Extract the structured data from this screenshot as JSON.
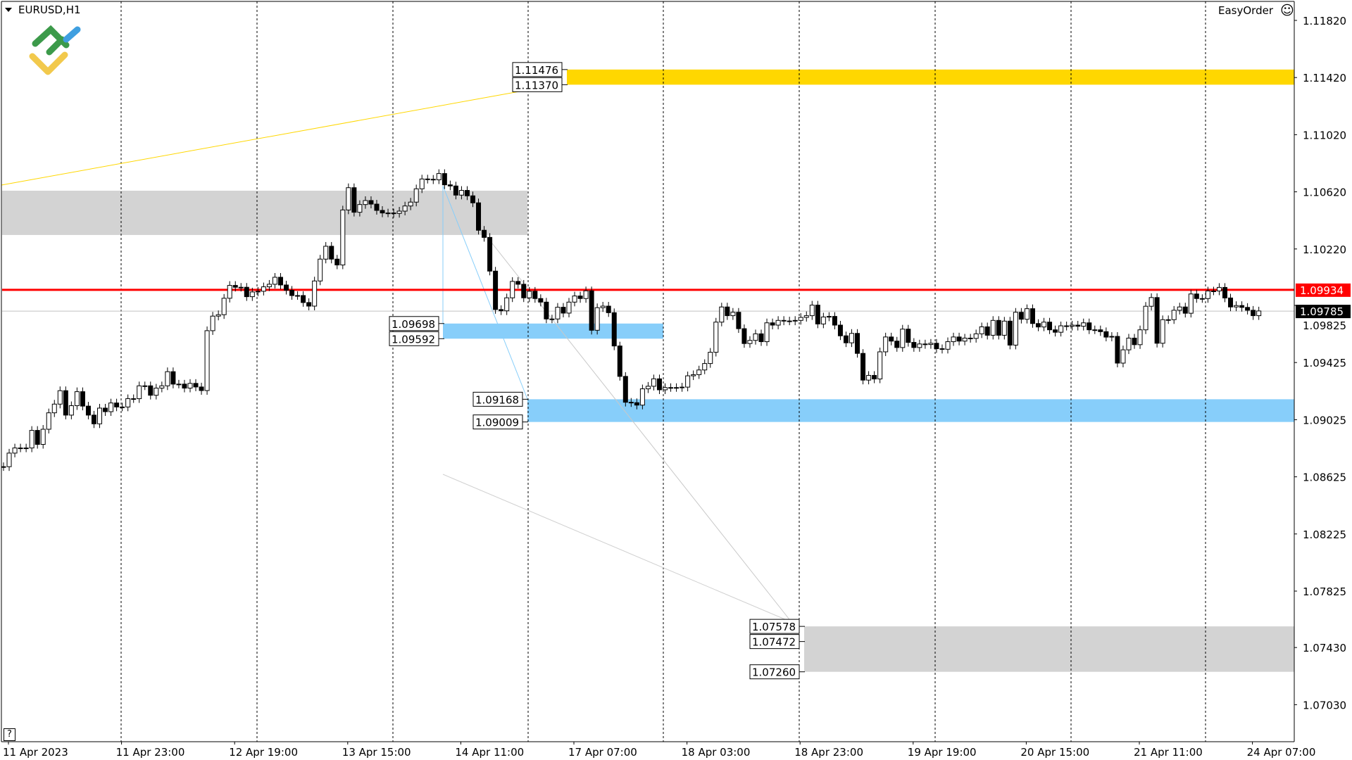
{
  "window": {
    "symbol_title": "EURUSD,H1",
    "plugin_label": "EasyOrder",
    "plugin_icon": "smiley-icon",
    "help_label": "?"
  },
  "colors": {
    "red_line": "#ff0000",
    "yellow_zone": "#ffd700",
    "blue_zone": "#87cefa",
    "gray_zone": "#d3d3d3",
    "bull": "#ffffff",
    "bear": "#000000",
    "current_price_label": "#000000"
  },
  "chart_data": {
    "type": "candlestick",
    "symbol": "EURUSD",
    "timeframe": "H1",
    "ylim": [
      1.069,
      1.1196
    ],
    "y_ticks": [
      "1.11820",
      "1.11420",
      "1.11020",
      "1.10620",
      "1.10220",
      "1.09825",
      "1.09425",
      "1.09025",
      "1.08625",
      "1.08225",
      "1.07825",
      "1.07430",
      "1.07030"
    ],
    "x_ticks": [
      "11 Apr 2023",
      "11 Apr 23:00",
      "12 Apr 19:00",
      "13 Apr 15:00",
      "14 Apr 11:00",
      "17 Apr 07:00",
      "18 Apr 03:00",
      "18 Apr 23:00",
      "19 Apr 19:00",
      "20 Apr 15:00",
      "21 Apr 11:00",
      "24 Apr 07:00"
    ],
    "grid": "vertical day separators (dashed)",
    "closes": [
      1.08696,
      1.08791,
      1.08827,
      1.08827,
      1.08827,
      1.0895,
      1.08852,
      1.08958,
      1.09073,
      1.09134,
      1.09228,
      1.09057,
      1.09123,
      1.09221,
      1.0912,
      1.09057,
      1.08996,
      1.09106,
      1.09081,
      1.09142,
      1.09114,
      1.09114,
      1.09172,
      1.09172,
      1.09262,
      1.09262,
      1.09196,
      1.09246,
      1.09262,
      1.09361,
      1.09274,
      1.09274,
      1.09246,
      1.09279,
      1.09254,
      1.09229,
      1.09648,
      1.0975,
      1.0976,
      1.09875,
      1.09965,
      1.09952,
      1.09952,
      1.09886,
      1.09919,
      1.09924,
      1.09955,
      1.09973,
      1.10022,
      1.09968,
      1.09931,
      1.09894,
      1.09894,
      1.09845,
      1.0982,
      1.09996,
      1.10149,
      1.10239,
      1.10149,
      1.10108,
      1.10493,
      1.10649,
      1.10477,
      1.10531,
      1.10559,
      1.10534,
      1.1049,
      1.10472,
      1.10472,
      1.10469,
      1.10485,
      1.10521,
      1.10548,
      1.10641,
      1.1071,
      1.10708,
      1.10704,
      1.10748,
      1.10669,
      1.10661,
      1.10597,
      1.1063,
      1.10592,
      1.10543,
      1.10351,
      1.10301,
      1.10065,
      1.09796,
      1.09787,
      1.09878,
      1.09993,
      1.09973,
      1.09878,
      1.09924,
      1.09873,
      1.09848,
      1.0973,
      1.0973,
      1.09812,
      1.09771,
      1.09848,
      1.09891,
      1.09873,
      1.09927,
      1.09651,
      1.09809,
      1.0982,
      1.09774,
      1.09541,
      1.09328,
      1.09147,
      1.09144,
      1.09127,
      1.09241,
      1.09259,
      1.09311,
      1.09234,
      1.0925,
      1.0925,
      1.0925,
      1.09253,
      1.09332,
      1.0934,
      1.09373,
      1.09418,
      1.09497,
      1.09708,
      1.09814,
      1.09753,
      1.09777,
      1.09662,
      1.09558,
      1.0958,
      1.09626,
      1.09571,
      1.09703,
      1.09687,
      1.0972,
      1.09716,
      1.09716,
      1.0972,
      1.09741,
      1.09753,
      1.09827,
      1.09695,
      1.09744,
      1.09748,
      1.09687,
      1.09612,
      1.09563,
      1.09629,
      1.09489,
      1.09302,
      1.09335,
      1.0931,
      1.095,
      1.09604,
      1.09575,
      1.0953,
      1.09659,
      1.09566,
      1.0953,
      1.09555,
      1.09551,
      1.0956,
      1.09522,
      1.09518,
      1.09571,
      1.09604,
      1.09575,
      1.09596,
      1.09594,
      1.09626,
      1.09675,
      1.09616,
      1.0972,
      1.09616,
      1.09715,
      1.09547,
      1.09777,
      1.09728,
      1.09802,
      1.09698,
      1.09674,
      1.09708,
      1.09654,
      1.09637,
      1.09682,
      1.09679,
      1.09687,
      1.09679,
      1.09703,
      1.09654,
      1.09654,
      1.09641,
      1.09603,
      1.09608,
      1.09421,
      1.09514,
      1.09596,
      1.0955,
      1.09654,
      1.09819,
      1.0988,
      1.0956,
      1.09725,
      1.09725,
      1.09791,
      1.09814,
      1.0977,
      1.09905,
      1.09873,
      1.09873,
      1.09926,
      1.09926,
      1.09951,
      1.09877,
      1.09814,
      1.09824,
      1.09811,
      1.09791,
      1.09753,
      1.09786
    ],
    "horizontal_line": {
      "price": 1.09934,
      "label": "1.09934"
    },
    "current_price": {
      "price": 1.09785,
      "label": "1.09785"
    },
    "zones": [
      {
        "name": "yellow-zone",
        "top": 1.11476,
        "bottom": 1.1137,
        "labels": [
          "1.11476",
          "1.11370"
        ]
      },
      {
        "name": "gray-upper-zone",
        "top": 1.10628,
        "bottom": 1.10318,
        "labels": []
      },
      {
        "name": "blue-upper-zone",
        "top": 1.09698,
        "bottom": 1.09592,
        "labels": [
          "1.09698",
          "1.09592"
        ]
      },
      {
        "name": "blue-lower-zone",
        "top": 1.09168,
        "bottom": 1.09009,
        "labels": [
          "1.09168",
          "1.09009"
        ]
      },
      {
        "name": "gray-lower-zone",
        "top": 1.07578,
        "bottom": 1.0726,
        "labels": [
          "1.07578",
          "1.07472",
          "1.07260"
        ]
      }
    ]
  }
}
